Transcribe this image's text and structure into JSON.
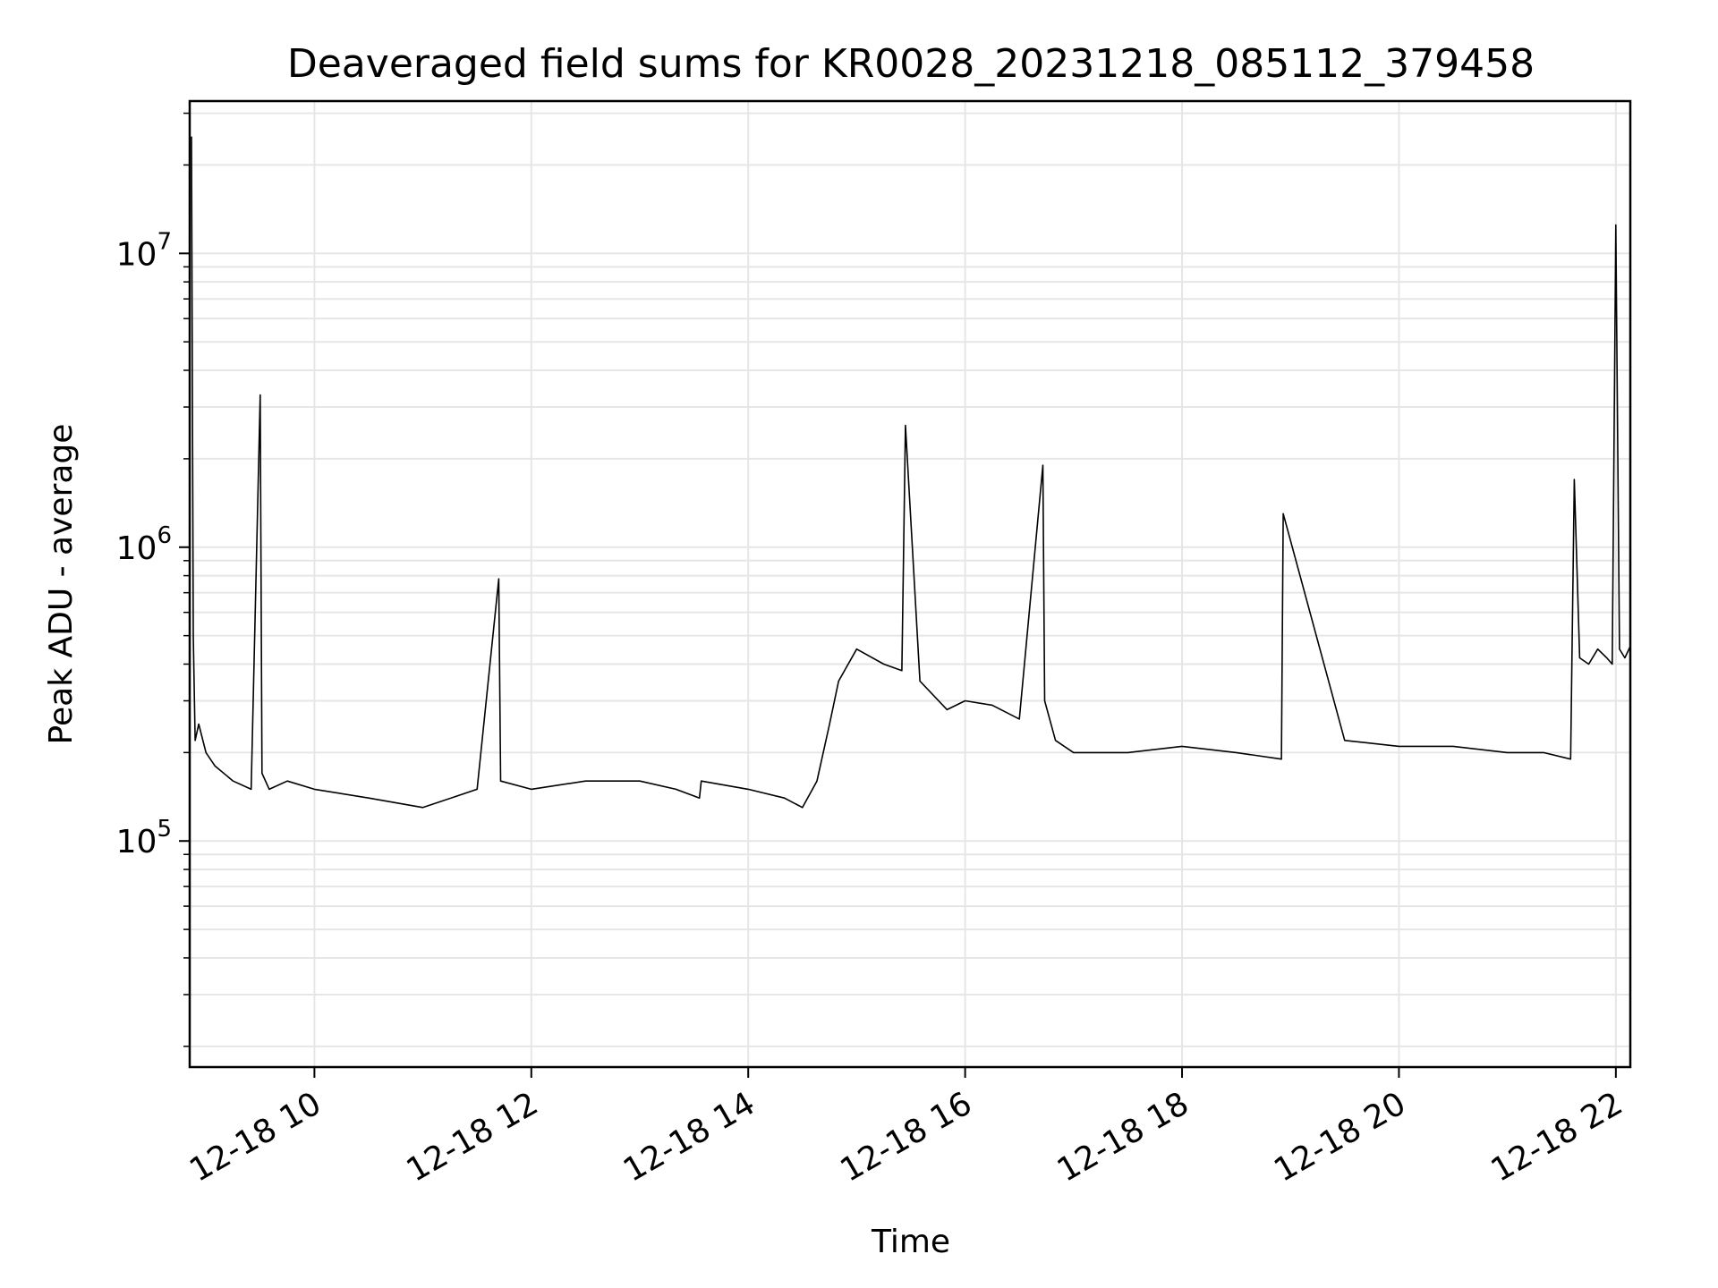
{
  "chart_data": {
    "type": "line",
    "title": "Deaveraged field sums for KR0028_20231218_085112_379458",
    "xlabel": "Time",
    "ylabel": "Peak ADU - average",
    "x_is_time": true,
    "xlim": [
      "2023-12-18 08:51",
      "2023-12-18 22:08"
    ],
    "ylim": [
      17000,
      33000000
    ],
    "y_scale": "log",
    "grid": true,
    "line_color": "#000000",
    "grid_color": "#e6e6e6",
    "x_ticks": [
      {
        "value": "2023-12-18 10:00",
        "label": "12-18 10"
      },
      {
        "value": "2023-12-18 12:00",
        "label": "12-18 12"
      },
      {
        "value": "2023-12-18 14:00",
        "label": "12-18 14"
      },
      {
        "value": "2023-12-18 16:00",
        "label": "12-18 16"
      },
      {
        "value": "2023-12-18 18:00",
        "label": "12-18 18"
      },
      {
        "value": "2023-12-18 20:00",
        "label": "12-18 20"
      },
      {
        "value": "2023-12-18 22:00",
        "label": "12-18 22"
      }
    ],
    "y_ticks": [
      {
        "value": 100000,
        "base": "10",
        "exp": "5"
      },
      {
        "value": 1000000,
        "base": "10",
        "exp": "6"
      },
      {
        "value": 10000000,
        "base": "10",
        "exp": "7"
      }
    ],
    "series": [
      {
        "x": [
          "2023-12-18 08:52",
          "2023-12-18 08:53",
          "2023-12-18 08:54",
          "2023-12-18 08:56",
          "2023-12-18 09:00",
          "2023-12-18 09:05",
          "2023-12-18 09:15",
          "2023-12-18 09:25",
          "2023-12-18 09:30",
          "2023-12-18 09:31",
          "2023-12-18 09:35",
          "2023-12-18 09:45",
          "2023-12-18 10:00",
          "2023-12-18 10:30",
          "2023-12-18 11:00",
          "2023-12-18 11:30",
          "2023-12-18 11:42",
          "2023-12-18 11:43",
          "2023-12-18 12:00",
          "2023-12-18 12:30",
          "2023-12-18 13:00",
          "2023-12-18 13:20",
          "2023-12-18 13:33",
          "2023-12-18 13:34",
          "2023-12-18 14:00",
          "2023-12-18 14:20",
          "2023-12-18 14:30",
          "2023-12-18 14:38",
          "2023-12-18 14:45",
          "2023-12-18 14:50",
          "2023-12-18 15:00",
          "2023-12-18 15:15",
          "2023-12-18 15:25",
          "2023-12-18 15:27",
          "2023-12-18 15:35",
          "2023-12-18 15:50",
          "2023-12-18 16:00",
          "2023-12-18 16:15",
          "2023-12-18 16:30",
          "2023-12-18 16:43",
          "2023-12-18 16:44",
          "2023-12-18 16:50",
          "2023-12-18 17:00",
          "2023-12-18 17:30",
          "2023-12-18 18:00",
          "2023-12-18 18:30",
          "2023-12-18 18:55",
          "2023-12-18 18:56",
          "2023-12-18 19:30",
          "2023-12-18 20:00",
          "2023-12-18 20:30",
          "2023-12-18 21:00",
          "2023-12-18 21:20",
          "2023-12-18 21:35",
          "2023-12-18 21:37",
          "2023-12-18 21:40",
          "2023-12-18 21:45",
          "2023-12-18 21:50",
          "2023-12-18 21:55",
          "2023-12-18 21:58",
          "2023-12-18 22:00",
          "2023-12-18 22:02",
          "2023-12-18 22:05",
          "2023-12-18 22:08"
        ],
        "y": [
          25000000,
          500000,
          220000,
          250000,
          200000,
          180000,
          160000,
          150000,
          3300000,
          170000,
          150000,
          160000,
          150000,
          140000,
          130000,
          150000,
          780000,
          160000,
          150000,
          160000,
          160000,
          150000,
          140000,
          160000,
          150000,
          140000,
          130000,
          160000,
          250000,
          350000,
          450000,
          400000,
          380000,
          2600000,
          350000,
          280000,
          300000,
          290000,
          260000,
          1900000,
          300000,
          220000,
          200000,
          200000,
          210000,
          200000,
          190000,
          1300000,
          220000,
          210000,
          210000,
          200000,
          200000,
          190000,
          1700000,
          420000,
          400000,
          450000,
          420000,
          400000,
          12500000,
          450000,
          420000,
          460000
        ]
      }
    ]
  }
}
